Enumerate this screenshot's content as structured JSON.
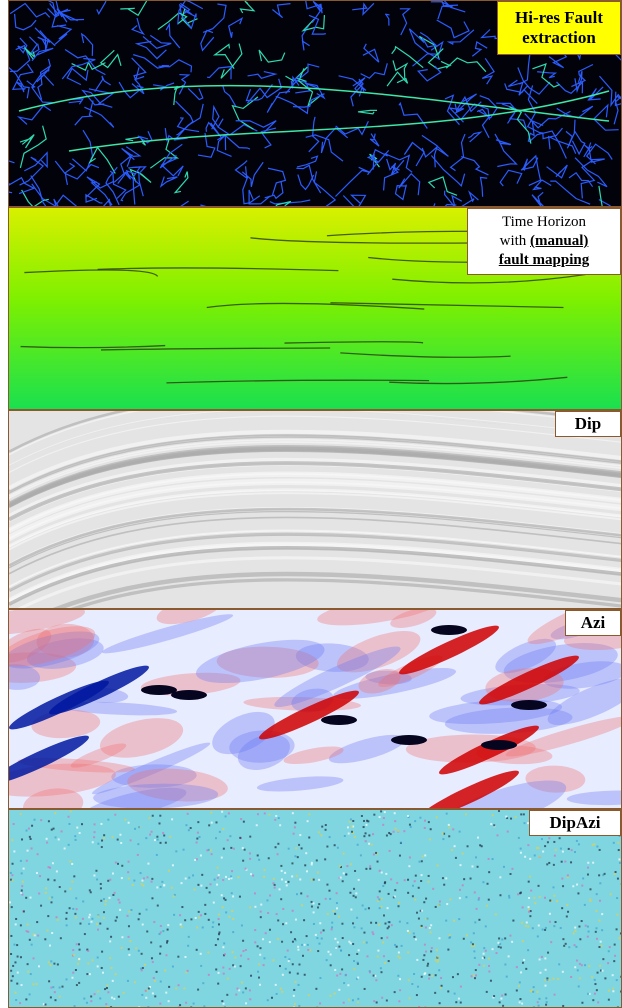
{
  "panels": [
    {
      "label": "Hi-res Fault extraction"
    },
    {
      "label_lines": [
        "Time Horizon",
        "with",
        "(manual)",
        "fault mapping"
      ]
    },
    {
      "label": "Dip"
    },
    {
      "label": "Azi"
    },
    {
      "label": "DipAzi"
    }
  ]
}
